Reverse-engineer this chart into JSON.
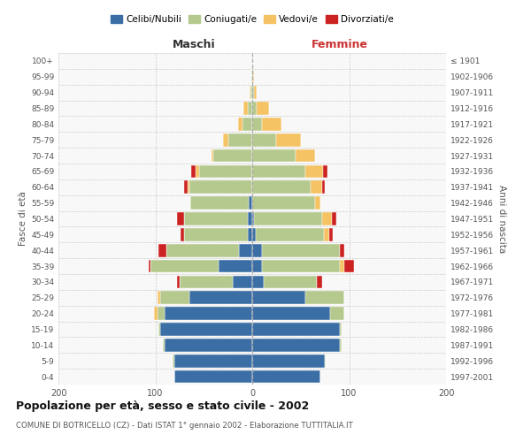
{
  "age_groups": [
    "0-4",
    "5-9",
    "10-14",
    "15-19",
    "20-24",
    "25-29",
    "30-34",
    "35-39",
    "40-44",
    "45-49",
    "50-54",
    "55-59",
    "60-64",
    "65-69",
    "70-74",
    "75-79",
    "80-84",
    "85-89",
    "90-94",
    "95-99",
    "100+"
  ],
  "birth_years": [
    "1997-2001",
    "1992-1996",
    "1987-1991",
    "1982-1986",
    "1977-1981",
    "1972-1976",
    "1967-1971",
    "1962-1966",
    "1957-1961",
    "1952-1956",
    "1947-1951",
    "1942-1946",
    "1937-1941",
    "1932-1936",
    "1927-1931",
    "1922-1926",
    "1917-1921",
    "1912-1916",
    "1907-1911",
    "1902-1906",
    "≤ 1901"
  ],
  "male": {
    "celibi": [
      80,
      80,
      90,
      95,
      90,
      65,
      20,
      35,
      14,
      5,
      5,
      4,
      0,
      0,
      0,
      0,
      0,
      0,
      0,
      0,
      0
    ],
    "coniugati": [
      0,
      2,
      2,
      2,
      8,
      30,
      55,
      70,
      75,
      65,
      65,
      60,
      65,
      55,
      40,
      25,
      10,
      5,
      2,
      1,
      0
    ],
    "vedovi": [
      0,
      0,
      0,
      0,
      3,
      3,
      0,
      0,
      0,
      0,
      0,
      0,
      2,
      3,
      2,
      5,
      5,
      4,
      1,
      0,
      0
    ],
    "divorziati": [
      0,
      0,
      0,
      0,
      0,
      0,
      3,
      2,
      8,
      4,
      8,
      0,
      3,
      5,
      0,
      0,
      0,
      0,
      0,
      0,
      0
    ]
  },
  "female": {
    "nubili": [
      70,
      75,
      90,
      90,
      80,
      55,
      12,
      10,
      10,
      4,
      2,
      0,
      0,
      0,
      0,
      0,
      0,
      0,
      0,
      0,
      0
    ],
    "coniugate": [
      0,
      1,
      2,
      2,
      15,
      40,
      55,
      80,
      80,
      70,
      70,
      65,
      60,
      55,
      45,
      25,
      10,
      5,
      2,
      1,
      0
    ],
    "vedove": [
      0,
      0,
      0,
      0,
      0,
      0,
      0,
      5,
      0,
      5,
      10,
      5,
      12,
      18,
      20,
      25,
      20,
      12,
      3,
      1,
      0
    ],
    "divorziate": [
      0,
      0,
      0,
      0,
      0,
      0,
      5,
      10,
      5,
      4,
      5,
      0,
      3,
      5,
      0,
      0,
      0,
      0,
      0,
      0,
      0
    ]
  },
  "colors": {
    "celibi": "#3a6ea5",
    "coniugati": "#b5c98e",
    "vedovi": "#f5c264",
    "divorziati": "#cc2222"
  },
  "xlim": 200,
  "title": "Popolazione per età, sesso e stato civile - 2002",
  "subtitle": "COMUNE DI BOTRICELLO (CZ) - Dati ISTAT 1° gennaio 2002 - Elaborazione TUTTITALIA.IT",
  "xlabel_left": "Maschi",
  "xlabel_right": "Femmine",
  "ylabel_left": "Fasce di età",
  "ylabel_right": "Anni di nascita",
  "legend_labels": [
    "Celibi/Nubili",
    "Coniugati/e",
    "Vedovi/e",
    "Divorziati/e"
  ],
  "background_color": "#ffffff",
  "plot_bg_color": "#f8f8f8",
  "grid_color": "#cccccc"
}
